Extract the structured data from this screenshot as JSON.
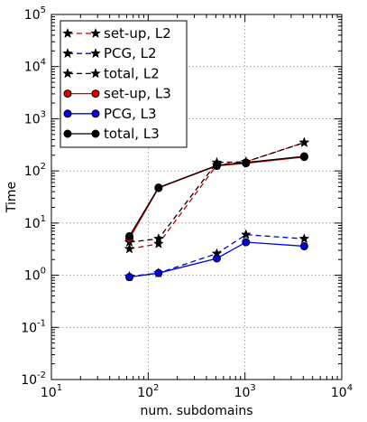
{
  "chart_data": {
    "type": "line",
    "xlabel": "num. subdomains",
    "ylabel": "Time",
    "xscale": "log",
    "yscale": "log",
    "xlim": [
      10,
      10000
    ],
    "ylim": [
      0.01,
      100000
    ],
    "x_ticks": [
      {
        "base": "10",
        "exp": "1",
        "value": 10
      },
      {
        "base": "10",
        "exp": "2",
        "value": 100
      },
      {
        "base": "10",
        "exp": "3",
        "value": 1000
      },
      {
        "base": "10",
        "exp": "4",
        "value": 10000
      }
    ],
    "y_ticks": [
      {
        "base": "10",
        "exp": "-2",
        "value": 0.01
      },
      {
        "base": "10",
        "exp": "-1",
        "value": 0.1
      },
      {
        "base": "10",
        "exp": "0",
        "value": 1
      },
      {
        "base": "10",
        "exp": "1",
        "value": 10
      },
      {
        "base": "10",
        "exp": "2",
        "value": 100
      },
      {
        "base": "10",
        "exp": "3",
        "value": 1000
      },
      {
        "base": "10",
        "exp": "4",
        "value": 10000
      },
      {
        "base": "10",
        "exp": "5",
        "value": 100000
      }
    ],
    "grid": true,
    "legend_position": "top-left",
    "x": [
      64,
      128,
      512,
      1024,
      4096
    ],
    "series": [
      {
        "name": "set-up, L2",
        "color": "#c00000",
        "marker": "star",
        "linestyle": "dashed",
        "values": [
          3.2,
          4.0,
          130,
          150,
          350
        ]
      },
      {
        "name": "PCG, L2",
        "color": "#0000cc",
        "marker": "star",
        "linestyle": "dashed",
        "values": [
          0.95,
          1.1,
          2.6,
          6.0,
          5.0
        ]
      },
      {
        "name": "total, L2",
        "color": "#000000",
        "marker": "star",
        "linestyle": "dashed",
        "values": [
          4.3,
          5.0,
          145,
          150,
          350
        ]
      },
      {
        "name": "set-up, L3",
        "color": "#dd0000",
        "marker": "circle",
        "linestyle": "solid",
        "values": [
          5.0,
          47,
          125,
          140,
          185
        ]
      },
      {
        "name": "PCG, L3",
        "color": "#0000ee",
        "marker": "circle",
        "linestyle": "solid",
        "values": [
          0.92,
          1.1,
          2.1,
          4.3,
          3.6
        ]
      },
      {
        "name": "total, L3",
        "color": "#000000",
        "marker": "circle",
        "linestyle": "solid",
        "values": [
          5.6,
          48,
          128,
          145,
          190
        ]
      }
    ]
  }
}
